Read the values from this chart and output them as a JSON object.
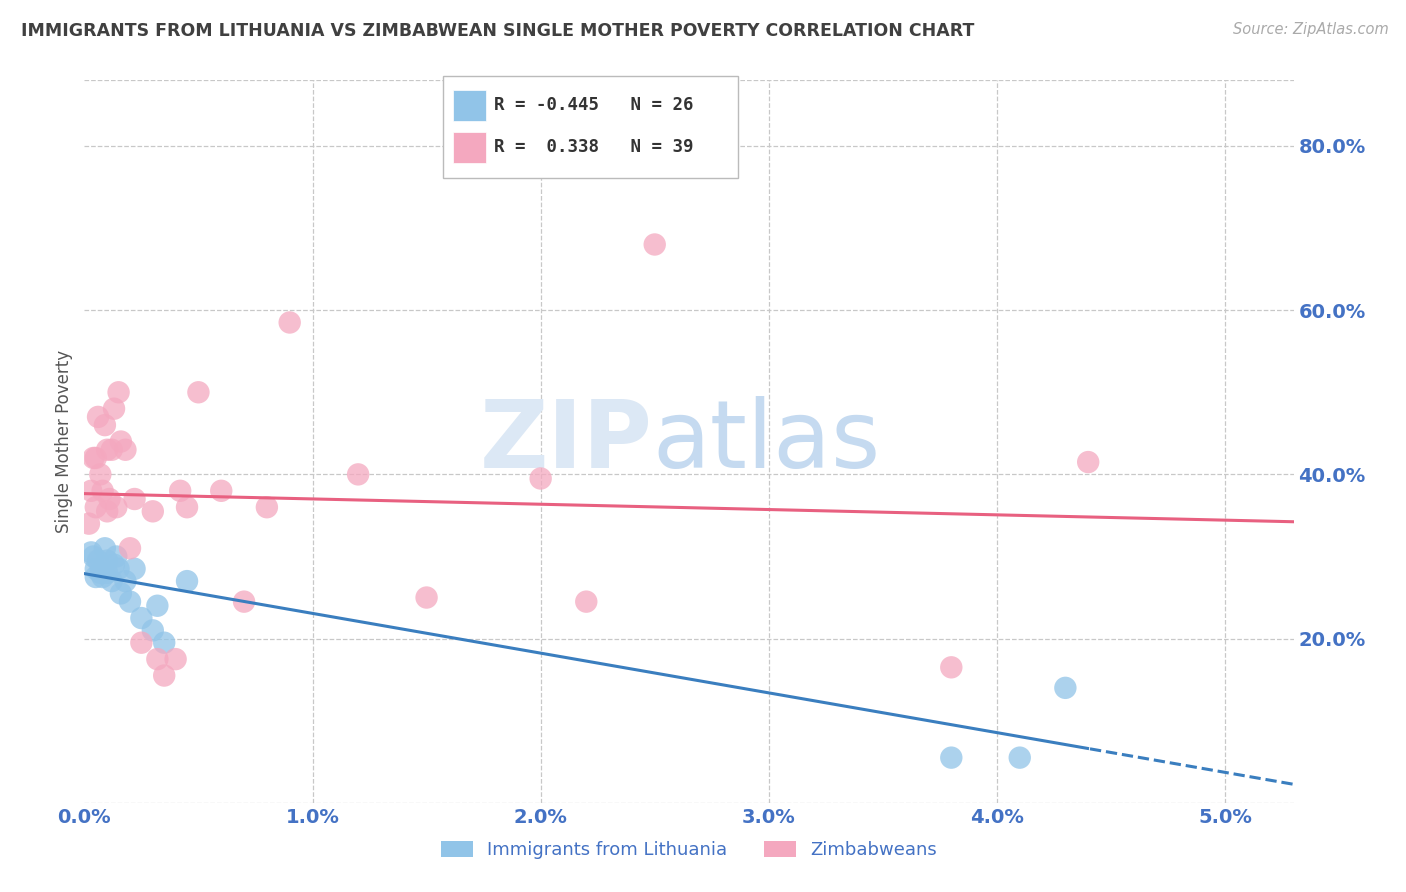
{
  "title": "IMMIGRANTS FROM LITHUANIA VS ZIMBABWEAN SINGLE MOTHER POVERTY CORRELATION CHART",
  "source": "Source: ZipAtlas.com",
  "ylabel": "Single Mother Poverty",
  "watermark_zip": "ZIP",
  "watermark_atlas": "atlas",
  "blue_label": "Immigrants from Lithuania",
  "pink_label": "Zimbabweans",
  "blue_R": "-0.445",
  "blue_N": "26",
  "pink_R": "0.338",
  "pink_N": "39",
  "blue_color": "#91c4e8",
  "pink_color": "#f4a8bf",
  "blue_line_color": "#3a7ebf",
  "pink_line_color": "#e86080",
  "axis_label_color": "#4472c4",
  "title_color": "#404040",
  "background_color": "#ffffff",
  "grid_color": "#c8c8c8",
  "xmin": 0.0,
  "xmax": 0.053,
  "ymin": 0.0,
  "ymax": 0.88,
  "yticks": [
    0.0,
    0.2,
    0.4,
    0.6,
    0.8
  ],
  "ytick_labels": [
    "",
    "20.0%",
    "40.0%",
    "60.0%",
    "80.0%"
  ],
  "xticks": [
    0.0,
    0.01,
    0.02,
    0.03,
    0.04,
    0.05
  ],
  "xtick_labels": [
    "0.0%",
    "1.0%",
    "2.0%",
    "3.0%",
    "4.0%",
    "5.0%"
  ],
  "blue_x": [
    0.0003,
    0.0004,
    0.0005,
    0.0005,
    0.0006,
    0.0007,
    0.0008,
    0.0009,
    0.001,
    0.001,
    0.0012,
    0.0013,
    0.0014,
    0.0015,
    0.0016,
    0.0018,
    0.002,
    0.0022,
    0.0025,
    0.003,
    0.0032,
    0.0035,
    0.0045,
    0.038,
    0.041,
    0.043
  ],
  "blue_y": [
    0.305,
    0.3,
    0.285,
    0.275,
    0.295,
    0.28,
    0.275,
    0.31,
    0.28,
    0.295,
    0.27,
    0.29,
    0.3,
    0.285,
    0.255,
    0.27,
    0.245,
    0.285,
    0.225,
    0.21,
    0.24,
    0.195,
    0.27,
    0.055,
    0.055,
    0.14
  ],
  "pink_x": [
    0.0002,
    0.0003,
    0.0004,
    0.0005,
    0.0005,
    0.0006,
    0.0007,
    0.0008,
    0.0009,
    0.001,
    0.001,
    0.0011,
    0.0012,
    0.0013,
    0.0014,
    0.0015,
    0.0016,
    0.0018,
    0.002,
    0.0022,
    0.0025,
    0.003,
    0.0032,
    0.0035,
    0.004,
    0.0042,
    0.0045,
    0.005,
    0.006,
    0.007,
    0.008,
    0.009,
    0.012,
    0.015,
    0.02,
    0.022,
    0.025,
    0.038,
    0.044
  ],
  "pink_y": [
    0.34,
    0.38,
    0.42,
    0.36,
    0.42,
    0.47,
    0.4,
    0.38,
    0.46,
    0.355,
    0.43,
    0.37,
    0.43,
    0.48,
    0.36,
    0.5,
    0.44,
    0.43,
    0.31,
    0.37,
    0.195,
    0.355,
    0.175,
    0.155,
    0.175,
    0.38,
    0.36,
    0.5,
    0.38,
    0.245,
    0.36,
    0.585,
    0.4,
    0.25,
    0.395,
    0.245,
    0.68,
    0.165,
    0.415
  ]
}
